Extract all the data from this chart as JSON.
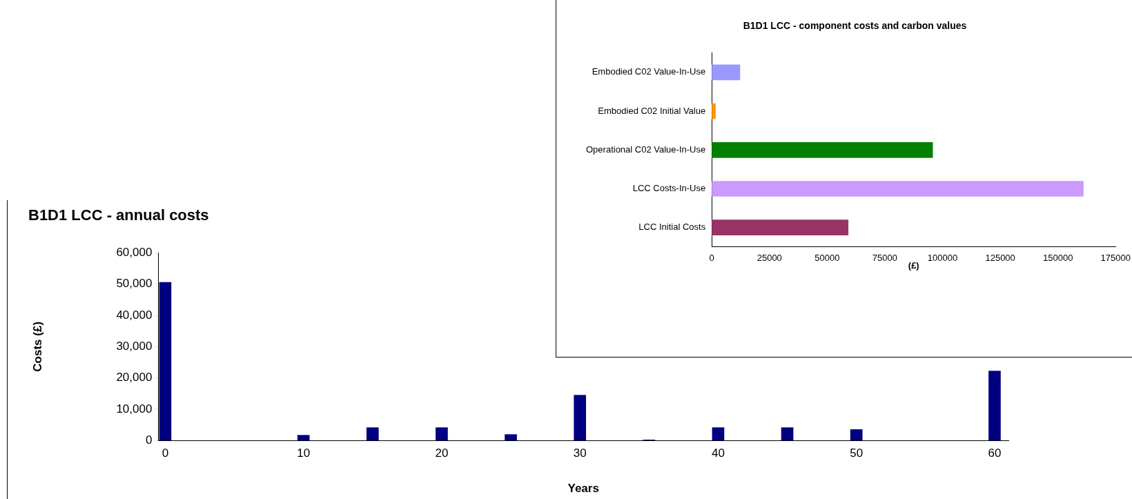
{
  "chart_data": [
    {
      "type": "bar",
      "title": "B1D1 LCC - annual costs",
      "xlabel": "Years",
      "ylabel": "Costs (£)",
      "x": [
        0,
        10,
        15,
        20,
        25,
        30,
        35,
        40,
        45,
        50,
        60
      ],
      "values": [
        50600,
        1700,
        4100,
        4100,
        1900,
        14500,
        200,
        4100,
        4100,
        3500,
        22200
      ],
      "color": "#000080",
      "xlim": [
        -0.5,
        61
      ],
      "xticks": [
        0,
        10,
        20,
        30,
        40,
        50,
        60
      ],
      "ylim": [
        0,
        60000
      ],
      "yticks": [
        0,
        {
          "value": 10000,
          "label": "10,000"
        },
        {
          "value": 20000,
          "label": "20,000"
        },
        {
          "value": 30000,
          "label": "30,000"
        },
        {
          "value": 40000,
          "label": "40,000"
        },
        {
          "value": 50000,
          "label": "50,000"
        },
        {
          "value": 60000,
          "label": "60,000"
        }
      ],
      "grid": false,
      "legend": false
    },
    {
      "type": "bar",
      "orientation": "horizontal",
      "title": "B1D1 LCC - component costs and carbon values",
      "xlabel": "(£)",
      "categories": [
        "Embodied C02 Value-In-Use",
        "Embodied C02 Initial Value",
        "Operational C02 Value-In-Use",
        "LCC Costs-In-Use",
        "LCC Initial Costs"
      ],
      "values": [
        12200,
        1600,
        95700,
        161000,
        59100
      ],
      "colors": [
        "#9999ff",
        "#ff9900",
        "#008000",
        "#cc99ff",
        "#993366"
      ],
      "xlim": [
        0,
        175000
      ],
      "xticks": [
        0,
        25000,
        50000,
        75000,
        100000,
        125000,
        150000,
        175000
      ],
      "grid": false,
      "legend": false
    }
  ]
}
